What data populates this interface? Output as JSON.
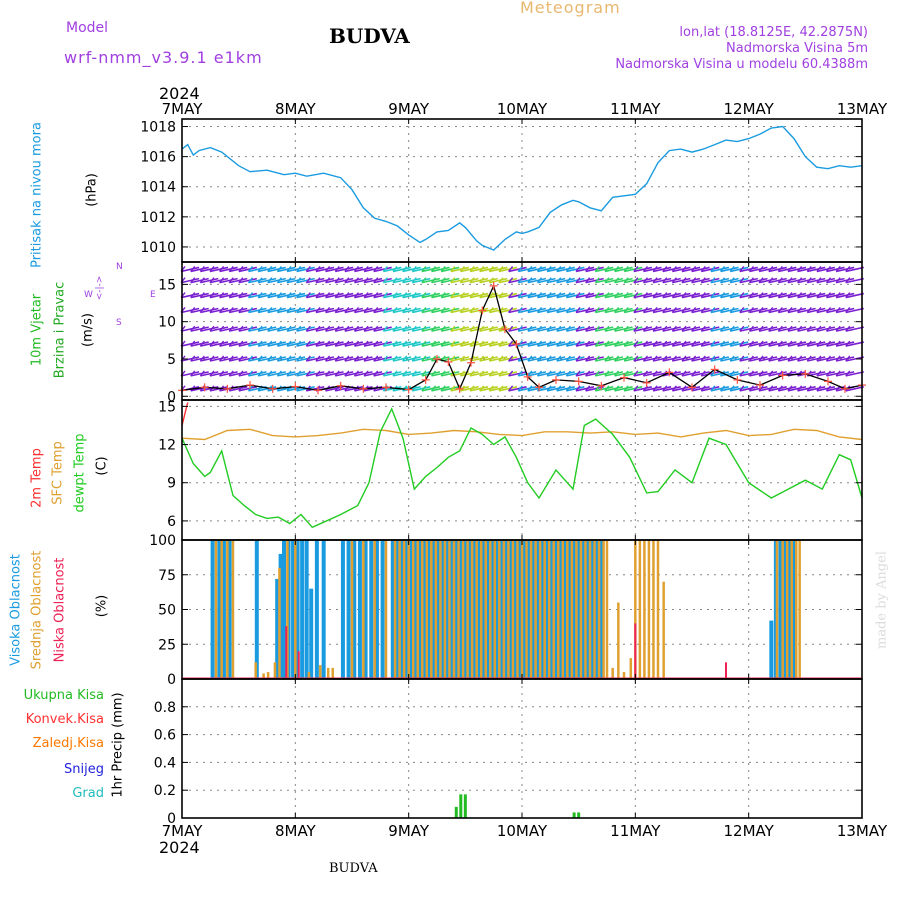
{
  "header": {
    "model_label": "Model",
    "model_name": "wrf-nmm_v3.9.1 e1km",
    "station_title": "BUDVA",
    "meteogram_label": "Meteogram",
    "lonlat": "lon,lat (18.8125E, 42.2875N)",
    "elevation": "Nadmorska Visina 5m",
    "model_elevation": "Nadmorska Visina u modelu 60.4388m"
  },
  "footer": {
    "station": "BUDVA",
    "credit": "made by Angel"
  },
  "colors": {
    "pressure": "#1a9be0",
    "wind_title": "#22bb22",
    "wind_subtitle": "#22aa22",
    "wind_speed": "#ff5040",
    "temp2m": "#ff3030",
    "sfc_temp": "#e0a030",
    "dewpt": "#22cc22",
    "high_cloud": "#1a9be0",
    "mid_cloud": "#e0a030",
    "low_cloud": "#ee2255",
    "total_precip": "#22bb22",
    "conv_precip": "#ff3030",
    "frozen_precip": "#ff7700",
    "snow": "#2222dd",
    "graupel": "#22bbbb",
    "label_purple": "#a040e0",
    "meteogram": "#e8b870"
  },
  "chart_data": [
    {
      "type": "line",
      "name": "Pritisak na nivou mora",
      "ylabel": "(hPa)",
      "ylim": [
        1009,
        1018.5
      ],
      "yticks": [
        1010,
        1012,
        1014,
        1016,
        1018
      ],
      "x_top_year": "2024",
      "x_bottom_year": "2024",
      "x_ticks": [
        "7MAY",
        "8MAY",
        "9MAY",
        "10MAY",
        "11MAY",
        "12MAY",
        "13MAY"
      ],
      "series": [
        {
          "name": "Pritisak na nivou mora",
          "x": [
            0,
            0.05,
            0.1,
            0.15,
            0.25,
            0.35,
            0.5,
            0.6,
            0.75,
            0.9,
            1.0,
            1.1,
            1.25,
            1.4,
            1.5,
            1.6,
            1.7,
            1.8,
            1.9,
            2.0,
            2.1,
            2.15,
            2.25,
            2.35,
            2.45,
            2.5,
            2.6,
            2.65,
            2.75,
            2.85,
            2.95,
            3.0,
            3.05,
            3.15,
            3.25,
            3.35,
            3.45,
            3.5,
            3.6,
            3.7,
            3.8,
            3.9,
            4.0,
            4.1,
            4.2,
            4.3,
            4.4,
            4.5,
            4.6,
            4.7,
            4.8,
            4.9,
            5.0,
            5.1,
            5.2,
            5.3,
            5.4,
            5.5,
            5.6,
            5.7,
            5.8,
            5.9,
            6.0
          ],
          "values": [
            1016.5,
            1016.8,
            1016.1,
            1016.4,
            1016.6,
            1016.3,
            1015.4,
            1015.0,
            1015.1,
            1014.8,
            1014.9,
            1014.7,
            1014.9,
            1014.6,
            1013.8,
            1012.6,
            1011.9,
            1011.7,
            1011.4,
            1010.8,
            1010.3,
            1010.5,
            1011.0,
            1011.1,
            1011.6,
            1011.3,
            1010.4,
            1010.1,
            1009.8,
            1010.5,
            1011.0,
            1010.9,
            1011.0,
            1011.3,
            1012.3,
            1012.8,
            1013.1,
            1013.0,
            1012.6,
            1012.4,
            1013.3,
            1013.4,
            1013.5,
            1014.2,
            1015.6,
            1016.4,
            1016.5,
            1016.3,
            1016.5,
            1016.8,
            1017.1,
            1017.0,
            1017.2,
            1017.5,
            1017.9,
            1018.0,
            1017.2,
            1016.0,
            1015.3,
            1015.2,
            1015.4,
            1015.3,
            1015.4
          ]
        }
      ]
    },
    {
      "type": "line",
      "name": "10m Vjetar Brzina i Pravac",
      "title_line1": "10m Vjetar",
      "title_line2": "Brzina i Pravac",
      "ylabel": "(m/s)",
      "ylim": [
        -0.5,
        18
      ],
      "yticks": [
        0,
        5,
        10,
        15
      ],
      "compass": {
        "n": "N",
        "w": "W",
        "e": "E",
        "s": "S"
      },
      "series": [
        {
          "name": "10m Vjetar Brzina",
          "x": [
            0,
            0.2,
            0.4,
            0.6,
            0.8,
            1.0,
            1.2,
            1.4,
            1.6,
            1.8,
            2.0,
            2.15,
            2.25,
            2.35,
            2.45,
            2.55,
            2.65,
            2.75,
            2.85,
            2.95,
            3.05,
            3.15,
            3.3,
            3.5,
            3.7,
            3.9,
            4.1,
            4.3,
            4.5,
            4.7,
            4.9,
            5.1,
            5.3,
            5.5,
            5.7,
            5.85,
            6.0
          ],
          "values": [
            0.8,
            1.2,
            1.0,
            1.5,
            1.0,
            1.3,
            0.8,
            1.4,
            1.0,
            1.2,
            0.9,
            2.2,
            5.0,
            4.6,
            1.0,
            4.5,
            11.5,
            14.8,
            9.0,
            7.0,
            2.6,
            1.2,
            2.2,
            2.0,
            1.4,
            2.5,
            1.8,
            3.2,
            1.2,
            3.6,
            2.2,
            1.5,
            2.8,
            3.0,
            2.0,
            1.0,
            1.5
          ]
        }
      ]
    },
    {
      "type": "line",
      "name": "Temperature",
      "labels": [
        "2m Temp",
        "SFC Temp",
        "dewpt Temp"
      ],
      "ylabel": "(C)",
      "ylim": [
        4.5,
        15.5
      ],
      "yticks": [
        6,
        9,
        12,
        15
      ],
      "series": [
        {
          "name": "2m Temp",
          "x": [
            0,
            0.05
          ],
          "values": [
            13.5,
            15.3
          ]
        },
        {
          "name": "SFC Temp",
          "x": [
            0,
            0.2,
            0.4,
            0.6,
            0.8,
            1.0,
            1.2,
            1.4,
            1.6,
            1.8,
            2.0,
            2.2,
            2.4,
            2.6,
            2.8,
            3.0,
            3.2,
            3.4,
            3.6,
            3.8,
            4.0,
            4.2,
            4.4,
            4.6,
            4.8,
            5.0,
            5.2,
            5.4,
            5.6,
            5.8,
            6.0
          ],
          "values": [
            12.5,
            12.4,
            13.1,
            13.2,
            12.7,
            12.6,
            12.7,
            12.9,
            13.2,
            13.1,
            12.8,
            12.9,
            13.1,
            13.0,
            12.8,
            12.7,
            13.0,
            13.0,
            12.9,
            13.0,
            12.8,
            12.9,
            12.6,
            12.9,
            13.1,
            12.7,
            12.8,
            13.2,
            13.1,
            12.6,
            12.4
          ]
        },
        {
          "name": "dewpt Temp",
          "x": [
            0,
            0.1,
            0.2,
            0.25,
            0.35,
            0.45,
            0.55,
            0.65,
            0.75,
            0.85,
            0.95,
            1.05,
            1.15,
            1.25,
            1.4,
            1.55,
            1.65,
            1.75,
            1.85,
            1.95,
            2.05,
            2.15,
            2.25,
            2.35,
            2.45,
            2.55,
            2.65,
            2.75,
            2.85,
            2.95,
            3.05,
            3.15,
            3.3,
            3.45,
            3.55,
            3.65,
            3.8,
            3.95,
            4.1,
            4.2,
            4.35,
            4.5,
            4.65,
            4.8,
            5.0,
            5.2,
            5.35,
            5.5,
            5.65,
            5.8,
            5.9,
            6.0
          ],
          "values": [
            12.5,
            10.5,
            9.5,
            9.8,
            11.5,
            8.0,
            7.2,
            6.5,
            6.2,
            6.3,
            5.8,
            6.5,
            5.5,
            5.9,
            6.5,
            7.2,
            9.0,
            13.0,
            14.8,
            12.5,
            8.5,
            9.5,
            10.2,
            11.0,
            11.5,
            13.3,
            12.8,
            12.0,
            12.6,
            11.0,
            9.0,
            7.8,
            10.0,
            8.5,
            13.5,
            14.0,
            12.8,
            11.0,
            8.2,
            8.3,
            10.0,
            9.0,
            12.5,
            12.0,
            9.0,
            7.8,
            8.5,
            9.2,
            8.5,
            11.2,
            10.8,
            7.8
          ]
        }
      ]
    },
    {
      "type": "bar",
      "name": "Oblacnost",
      "labels": [
        "Visoka Oblacnost",
        "Srednja Oblacnost",
        "Niska Oblacnost"
      ],
      "ylabel": "(%)",
      "ylim": [
        0,
        100
      ],
      "yticks": [
        0,
        25,
        50,
        75,
        100
      ],
      "series": [
        {
          "name": "Visoka Oblacnost",
          "x": [
            0.27,
            0.33,
            0.37,
            0.42,
            0.66,
            0.84,
            0.87,
            0.9,
            0.94,
            0.98,
            1.02,
            1.06,
            1.1,
            1.14,
            1.19,
            1.25,
            1.42,
            1.47,
            1.52,
            1.57,
            1.62,
            1.67,
            1.72,
            1.77,
            1.86,
            1.9,
            1.94,
            1.98,
            2.02,
            2.06,
            2.1,
            2.14,
            2.18,
            2.22,
            2.26,
            2.3,
            2.34,
            2.38,
            2.42,
            2.46,
            2.5,
            2.54,
            2.58,
            2.62,
            2.66,
            2.7,
            2.74,
            2.78,
            2.82,
            2.86,
            2.9,
            2.94,
            2.98,
            3.02,
            3.06,
            3.1,
            3.14,
            3.18,
            3.22,
            3.26,
            3.3,
            3.34,
            3.38,
            3.42,
            3.46,
            3.5,
            3.54,
            3.58,
            3.62,
            3.66,
            3.7,
            5.2,
            5.24,
            5.28,
            5.32,
            5.36,
            5.4
          ],
          "values": [
            100,
            100,
            100,
            100,
            100,
            72,
            90,
            100,
            100,
            100,
            100,
            100,
            100,
            65,
            100,
            100,
            100,
            100,
            100,
            100,
            100,
            100,
            100,
            100,
            100,
            100,
            100,
            100,
            100,
            100,
            100,
            100,
            100,
            100,
            100,
            100,
            100,
            100,
            100,
            100,
            100,
            100,
            100,
            100,
            100,
            100,
            100,
            100,
            100,
            100,
            100,
            100,
            100,
            100,
            100,
            100,
            100,
            100,
            100,
            100,
            100,
            100,
            100,
            100,
            100,
            100,
            100,
            100,
            100,
            100,
            100,
            42,
            100,
            100,
            100,
            100,
            100
          ]
        },
        {
          "name": "Srednja Oblacnost",
          "x": [
            0.3,
            0.35,
            0.4,
            0.45,
            0.65,
            0.72,
            0.76,
            0.82,
            0.86,
            0.93,
            1.0,
            1.12,
            1.22,
            1.29,
            1.33,
            1.5,
            1.6,
            1.7,
            1.8,
            1.88,
            1.92,
            1.96,
            2.0,
            2.04,
            2.08,
            2.12,
            2.16,
            2.2,
            2.24,
            2.28,
            2.32,
            2.36,
            2.4,
            2.44,
            2.48,
            2.52,
            2.56,
            2.6,
            2.64,
            2.68,
            2.72,
            2.76,
            2.8,
            2.84,
            2.88,
            2.92,
            2.96,
            3.0,
            3.04,
            3.08,
            3.12,
            3.16,
            3.2,
            3.24,
            3.28,
            3.32,
            3.36,
            3.4,
            3.44,
            3.48,
            3.52,
            3.56,
            3.6,
            3.64,
            3.68,
            3.72,
            3.75,
            3.8,
            3.85,
            3.9,
            3.96,
            4.0,
            4.04,
            4.08,
            4.12,
            4.16,
            4.2,
            4.25,
            5.25,
            5.3,
            5.34,
            5.38,
            5.42,
            5.45
          ],
          "values": [
            100,
            100,
            100,
            100,
            12,
            4,
            5,
            12,
            80,
            100,
            100,
            5,
            10,
            8,
            8,
            100,
            100,
            100,
            100,
            100,
            100,
            100,
            100,
            100,
            100,
            100,
            100,
            100,
            100,
            100,
            100,
            100,
            100,
            100,
            100,
            100,
            100,
            100,
            100,
            100,
            100,
            100,
            100,
            100,
            100,
            100,
            100,
            100,
            100,
            100,
            100,
            100,
            100,
            100,
            100,
            100,
            100,
            100,
            100,
            100,
            100,
            100,
            100,
            100,
            100,
            100,
            100,
            8,
            55,
            5,
            15,
            100,
            100,
            100,
            100,
            100,
            100,
            70,
            100,
            100,
            100,
            100,
            100,
            100
          ]
        },
        {
          "name": "Niska Oblacnost",
          "x": [
            0.92,
            1.03,
            4.0,
            4.8
          ],
          "values": [
            38,
            20,
            40,
            12
          ]
        }
      ]
    },
    {
      "type": "bar",
      "name": "1hr Precip",
      "labels": [
        "Ukupna Kisa",
        "Konvek.Kisa",
        "Zaledj.Kisa",
        "Snijeg",
        "Grad"
      ],
      "ylabel": "1hr Precip (mm)",
      "ylim": [
        0,
        1
      ],
      "yticks": [
        0,
        0.2,
        0.4,
        0.6,
        0.8
      ],
      "yticklabels": [
        "0",
        "0.2",
        "0.4",
        "0.6",
        "0.8"
      ],
      "series": [
        {
          "name": "Ukupna Kisa",
          "x": [
            2.42,
            2.46,
            2.5,
            3.46,
            3.5
          ],
          "values": [
            0.08,
            0.17,
            0.17,
            0.04,
            0.04
          ]
        }
      ]
    }
  ]
}
